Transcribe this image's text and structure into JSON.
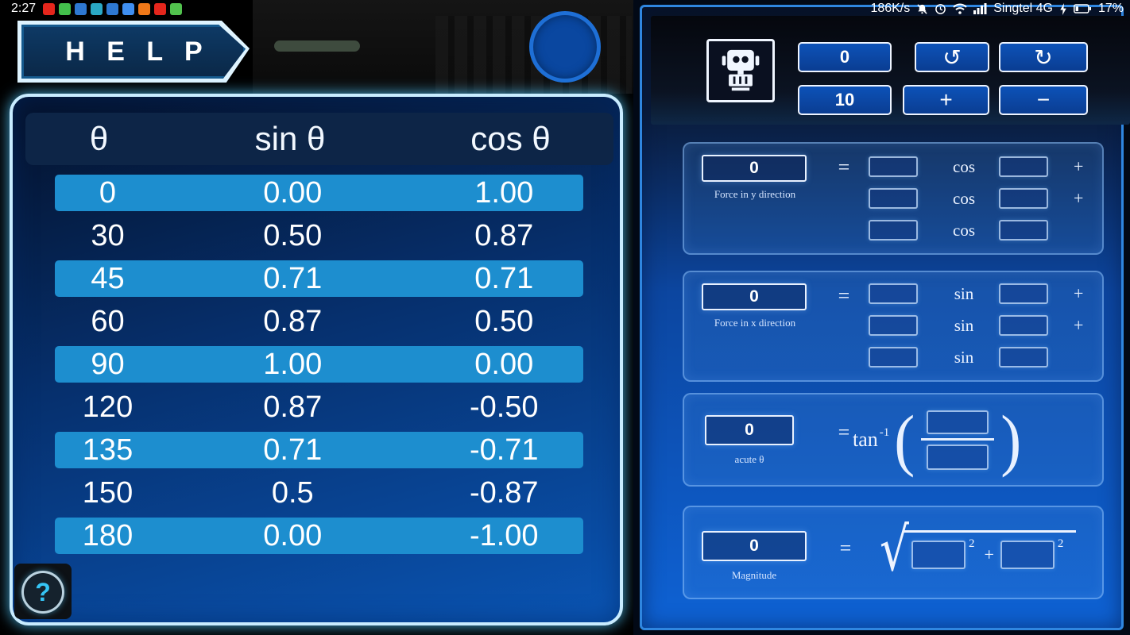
{
  "colors": {
    "accent_cyan": "#49c8ff",
    "table_row_highlight": "#1d8ecf",
    "panel_border_blue": "#2f86e0",
    "button_blue": "#0c4aae"
  },
  "status_bar": {
    "time": "2:27",
    "net_speed": "186K/s",
    "carrier": "Singtel 4G",
    "battery": "17%",
    "notification_icons": [
      {
        "name": "youtube-notification-icon",
        "color": "#e5261c"
      },
      {
        "name": "messaging-notification-icon",
        "color": "#43c04c"
      },
      {
        "name": "app-notification-icon",
        "color": "#2e78d2"
      },
      {
        "name": "app-notification-icon",
        "color": "#2aa8c4"
      },
      {
        "name": "app-notification-icon",
        "color": "#2e78d2"
      },
      {
        "name": "drive-notification-icon",
        "color": "#3f8ef0"
      },
      {
        "name": "app-notification-icon",
        "color": "#f07818"
      },
      {
        "name": "youtube-notification-icon",
        "color": "#e5261c"
      },
      {
        "name": "android-notification-icon",
        "color": "#52c24e"
      }
    ]
  },
  "left_panel": {
    "help_button_label": "H E L P",
    "question_button_label": "?",
    "table": {
      "headers": [
        "θ",
        "sin θ",
        "cos θ"
      ],
      "rows": [
        [
          "0",
          "0.00",
          "1.00"
        ],
        [
          "30",
          "0.50",
          "0.87"
        ],
        [
          "45",
          "0.71",
          "0.71"
        ],
        [
          "60",
          "0.87",
          "0.50"
        ],
        [
          "90",
          "1.00",
          "0.00"
        ],
        [
          "120",
          "0.87",
          "-0.50"
        ],
        [
          "135",
          "0.71",
          "-0.71"
        ],
        [
          "150",
          "0.5",
          "-0.87"
        ],
        [
          "180",
          "0.00",
          "-1.00"
        ]
      ]
    }
  },
  "right_panel": {
    "toolbar": {
      "angle_value": "0",
      "force_value": "10",
      "rotate_ccw_label": "↺",
      "rotate_cw_label": "↻",
      "increase_label": "+",
      "decrease_label": "−"
    },
    "force_y": {
      "value": "0",
      "label": "Force in y direction",
      "equals": "=",
      "operator": "cos",
      "plus": "+"
    },
    "force_x": {
      "value": "0",
      "label": "Force in x direction",
      "equals": "=",
      "operator": "sin",
      "plus": "+"
    },
    "acute_theta": {
      "value": "0",
      "label": "acute θ",
      "equals": "=",
      "function": "tan",
      "superscript": "-1",
      "paren_open": "(",
      "paren_close": ")"
    },
    "magnitude": {
      "value": "0",
      "label": "Magnitude",
      "equals": "=",
      "sqrt": "√",
      "superscript": "2",
      "plus": "+"
    }
  }
}
